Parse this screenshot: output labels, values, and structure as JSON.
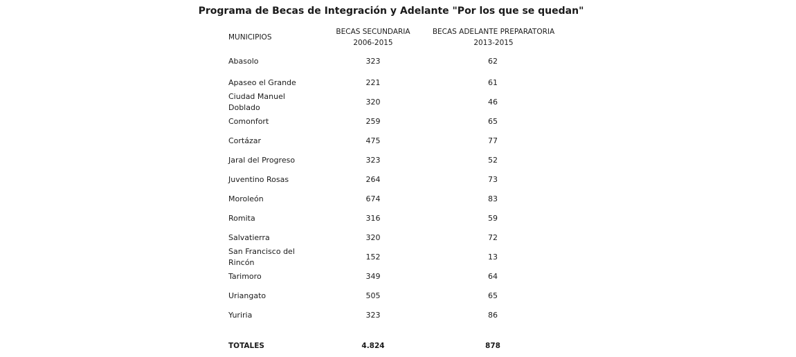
{
  "title": "Programa de Becas de Integración y Adelante \"Por los que se quedan\"",
  "headers": {
    "municipios": "MUNICIPIOS",
    "secundaria_line1": "BECAS SECUNDARIA",
    "secundaria_line2": "2006-2015",
    "preparatoria_line1": "BECAS ADELANTE PREPARATORIA",
    "preparatoria_line2": "2013-2015"
  },
  "rows": [
    {
      "municipio": "Abasolo",
      "secundaria": "323",
      "preparatoria": "62"
    },
    {
      "municipio": "Apaseo el Grande",
      "secundaria": "221",
      "preparatoria": "61"
    },
    {
      "municipio": "Ciudad Manuel Doblado",
      "secundaria": "320",
      "preparatoria": "46"
    },
    {
      "municipio": "Comonfort",
      "secundaria": "259",
      "preparatoria": "65"
    },
    {
      "municipio": "Cortázar",
      "secundaria": "475",
      "preparatoria": "77"
    },
    {
      "municipio": "Jaral del Progreso",
      "secundaria": "323",
      "preparatoria": "52"
    },
    {
      "municipio": "Juventino Rosas",
      "secundaria": "264",
      "preparatoria": "73"
    },
    {
      "municipio": "Moroleón",
      "secundaria": "674",
      "preparatoria": "83"
    },
    {
      "municipio": "Romita",
      "secundaria": "316",
      "preparatoria": "59"
    },
    {
      "municipio": "Salvatierra",
      "secundaria": "320",
      "preparatoria": "72"
    },
    {
      "municipio": "San Francisco del Rincón",
      "secundaria": "152",
      "preparatoria": "13"
    },
    {
      "municipio": "Tarimoro",
      "secundaria": "349",
      "preparatoria": "64"
    },
    {
      "municipio": "Uriangato",
      "secundaria": "505",
      "preparatoria": "65"
    },
    {
      "municipio": "Yuriria",
      "secundaria": "323",
      "preparatoria": "86"
    }
  ],
  "totals": {
    "label": "TOTALES",
    "secundaria": "4.824",
    "preparatoria": "878"
  }
}
